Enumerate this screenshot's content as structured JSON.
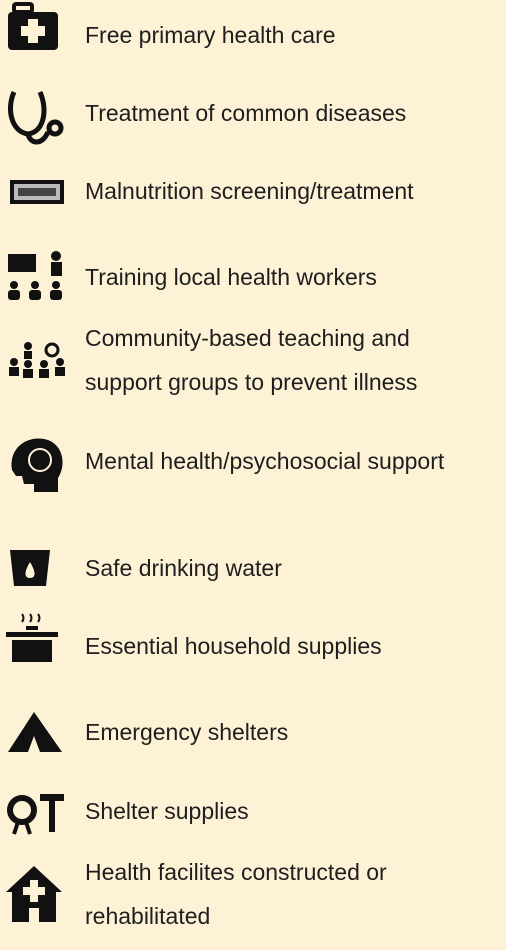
{
  "items": [
    {
      "lines": [
        "Free primary health care"
      ]
    },
    {
      "lines": [
        "Treatment of common diseases"
      ]
    },
    {
      "lines": [
        "Malnutrition screening/treatment"
      ]
    },
    {
      "lines": [
        "Training local health workers"
      ]
    },
    {
      "lines": [
        "Community-based teaching and",
        "support groups to prevent illness"
      ]
    },
    {
      "lines": [
        "Mental health/psychosocial support"
      ]
    },
    {
      "lines": [
        "Safe drinking water"
      ]
    },
    {
      "lines": [
        "Essential household supplies"
      ]
    },
    {
      "lines": [
        "Emergency shelters"
      ]
    },
    {
      "lines": [
        "Shelter supplies"
      ]
    },
    {
      "lines": [
        "Health facilites constructed or",
        "rehabilitated"
      ]
    }
  ]
}
